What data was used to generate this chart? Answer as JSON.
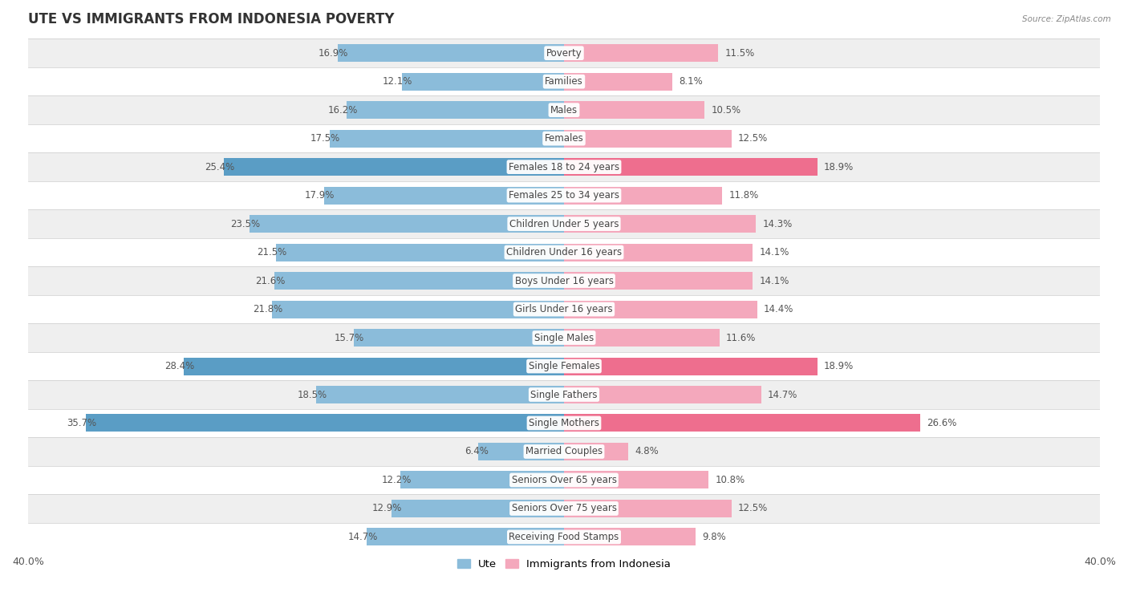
{
  "title": "UTE VS IMMIGRANTS FROM INDONESIA POVERTY",
  "source": "Source: ZipAtlas.com",
  "categories": [
    "Poverty",
    "Families",
    "Males",
    "Females",
    "Females 18 to 24 years",
    "Females 25 to 34 years",
    "Children Under 5 years",
    "Children Under 16 years",
    "Boys Under 16 years",
    "Girls Under 16 years",
    "Single Males",
    "Single Females",
    "Single Fathers",
    "Single Mothers",
    "Married Couples",
    "Seniors Over 65 years",
    "Seniors Over 75 years",
    "Receiving Food Stamps"
  ],
  "ute_values": [
    16.9,
    12.1,
    16.2,
    17.5,
    25.4,
    17.9,
    23.5,
    21.5,
    21.6,
    21.8,
    15.7,
    28.4,
    18.5,
    35.7,
    6.4,
    12.2,
    12.9,
    14.7
  ],
  "immigrant_values": [
    11.5,
    8.1,
    10.5,
    12.5,
    18.9,
    11.8,
    14.3,
    14.1,
    14.1,
    14.4,
    11.6,
    18.9,
    14.7,
    26.6,
    4.8,
    10.8,
    12.5,
    9.8
  ],
  "ute_color": "#8BBCDA",
  "immigrant_color": "#F4A8BC",
  "highlight_ute_indices": [
    4,
    11,
    13
  ],
  "highlight_imm_indices": [
    4,
    11,
    13
  ],
  "highlight_ute_color": "#5A9DC5",
  "highlight_imm_color": "#EE6E8E",
  "axis_limit": 40.0,
  "bar_height": 0.62,
  "row_bg_odd": "#efefef",
  "row_bg_even": "#ffffff",
  "label_fontsize": 8.5,
  "value_fontsize": 8.5,
  "title_fontsize": 12,
  "legend_labels": [
    "Ute",
    "Immigrants from Indonesia"
  ],
  "bg_color": "#ffffff"
}
